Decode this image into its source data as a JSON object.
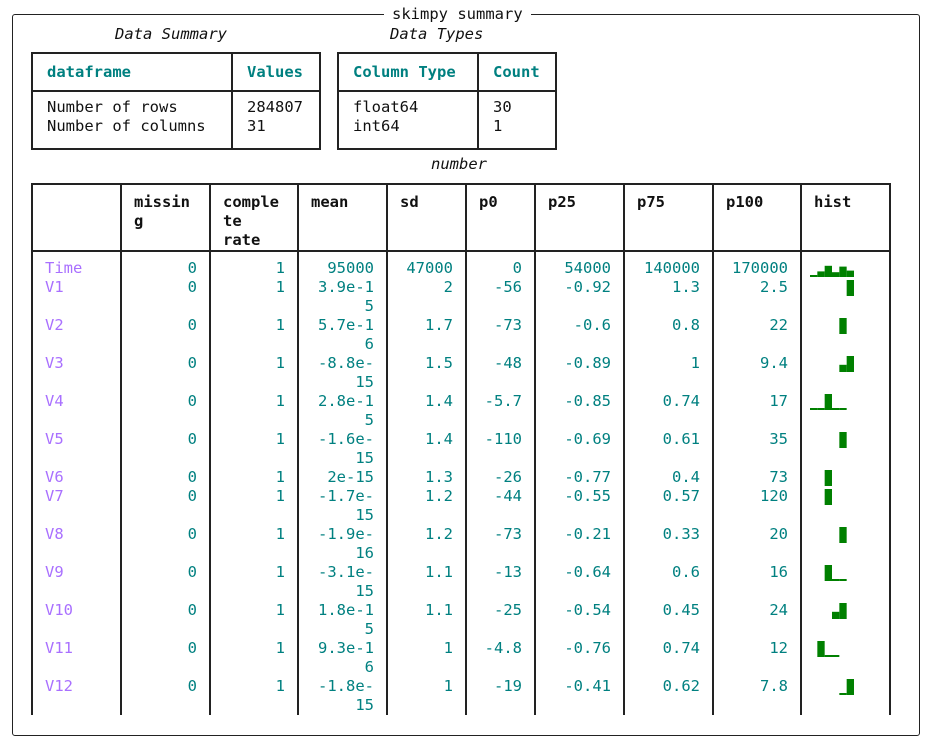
{
  "title": "skimpy summary",
  "data_summary": {
    "caption": "Data Summary",
    "headers": [
      "dataframe",
      "Values"
    ],
    "labels": "Number of rows\nNumber of columns",
    "values": "284807\n31"
  },
  "data_types": {
    "caption": "Data Types",
    "headers": [
      "Column Type",
      "Count"
    ],
    "types": "float64\nint64",
    "counts": "30\n1"
  },
  "number": {
    "caption": "number",
    "headers": [
      "",
      "missin\ng",
      "comple\nte\nrate",
      "mean",
      "sd",
      "p0",
      "p25",
      "p75",
      "p100",
      "hist"
    ],
    "rows": [
      {
        "name": "Time",
        "missing": "0",
        "rate": "1",
        "mean": "95000",
        "sd": "47000",
        "p0": "0",
        "p25": "54000",
        "p75": "140000",
        "p100": "170000",
        "hist": [
          0.1,
          0.35,
          0.7,
          0.3,
          0.65,
          0.4
        ],
        "rowh": 19
      },
      {
        "name": "V1",
        "missing": "0",
        "rate": "1",
        "mean": "3.9e-1\n5",
        "sd": "2",
        "p0": "-56",
        "p25": "-0.92",
        "p75": "1.3",
        "p100": "2.5",
        "hist": [
          0,
          0,
          0,
          0,
          0,
          1
        ],
        "rowh": 38
      },
      {
        "name": "V2",
        "missing": "0",
        "rate": "1",
        "mean": "5.7e-1\n6",
        "sd": "1.7",
        "p0": "-73",
        "p25": "-0.6",
        "p75": "0.8",
        "p100": "22",
        "hist": [
          0,
          0,
          0,
          0,
          1,
          0
        ],
        "rowh": 38
      },
      {
        "name": "V3",
        "missing": "0",
        "rate": "1",
        "mean": "-8.8e-\n15",
        "sd": "1.5",
        "p0": "-48",
        "p25": "-0.89",
        "p75": "1",
        "p100": "9.4",
        "hist": [
          0,
          0,
          0,
          0,
          0.45,
          1
        ],
        "rowh": 38
      },
      {
        "name": "V4",
        "missing": "0",
        "rate": "1",
        "mean": "2.8e-1\n5",
        "sd": "1.4",
        "p0": "-5.7",
        "p25": "-0.85",
        "p75": "0.74",
        "p100": "17",
        "hist": [
          0.1,
          0.1,
          1,
          0.1,
          0.1,
          0
        ],
        "rowh": 38
      },
      {
        "name": "V5",
        "missing": "0",
        "rate": "1",
        "mean": "-1.6e-\n15",
        "sd": "1.4",
        "p0": "-110",
        "p25": "-0.69",
        "p75": "0.61",
        "p100": "35",
        "hist": [
          0,
          0,
          0,
          0,
          1,
          0
        ],
        "rowh": 38
      },
      {
        "name": "V6",
        "missing": "0",
        "rate": "1",
        "mean": "2e-15",
        "sd": "1.3",
        "p0": "-26",
        "p25": "-0.77",
        "p75": "0.4",
        "p100": "73",
        "hist": [
          0,
          0,
          1,
          0,
          0,
          0
        ],
        "rowh": 19
      },
      {
        "name": "V7",
        "missing": "0",
        "rate": "1",
        "mean": "-1.7e-\n15",
        "sd": "1.2",
        "p0": "-44",
        "p25": "-0.55",
        "p75": "0.57",
        "p100": "120",
        "hist": [
          0,
          0,
          1,
          0,
          0,
          0
        ],
        "rowh": 38
      },
      {
        "name": "V8",
        "missing": "0",
        "rate": "1",
        "mean": "-1.9e-\n16",
        "sd": "1.2",
        "p0": "-73",
        "p25": "-0.21",
        "p75": "0.33",
        "p100": "20",
        "hist": [
          0,
          0,
          0,
          0,
          1,
          0
        ],
        "rowh": 38
      },
      {
        "name": "V9",
        "missing": "0",
        "rate": "1",
        "mean": "-3.1e-\n15",
        "sd": "1.1",
        "p0": "-13",
        "p25": "-0.64",
        "p75": "0.6",
        "p100": "16",
        "hist": [
          0,
          0,
          1,
          0.1,
          0.1,
          0
        ],
        "rowh": 38
      },
      {
        "name": "V10",
        "missing": "0",
        "rate": "1",
        "mean": "1.8e-1\n5",
        "sd": "1.1",
        "p0": "-25",
        "p25": "-0.54",
        "p75": "0.45",
        "p100": "24",
        "hist": [
          0,
          0,
          0,
          0.45,
          1,
          0
        ],
        "rowh": 38
      },
      {
        "name": "V11",
        "missing": "0",
        "rate": "1",
        "mean": "9.3e-1\n6",
        "sd": "1",
        "p0": "-4.8",
        "p25": "-0.76",
        "p75": "0.74",
        "p100": "12",
        "hist": [
          0,
          1,
          0.1,
          0.1,
          0,
          0
        ],
        "rowh": 38
      },
      {
        "name": "V12",
        "missing": "0",
        "rate": "1",
        "mean": "-1.8e-\n15",
        "sd": "1",
        "p0": "-19",
        "p25": "-0.41",
        "p75": "0.62",
        "p100": "7.8",
        "hist": [
          0,
          0,
          0,
          0,
          0.1,
          1
        ],
        "rowh": 38
      }
    ]
  },
  "colors": {
    "header": "#008080",
    "name": "#a970ff",
    "value": "#008080",
    "hist": "#008000"
  }
}
